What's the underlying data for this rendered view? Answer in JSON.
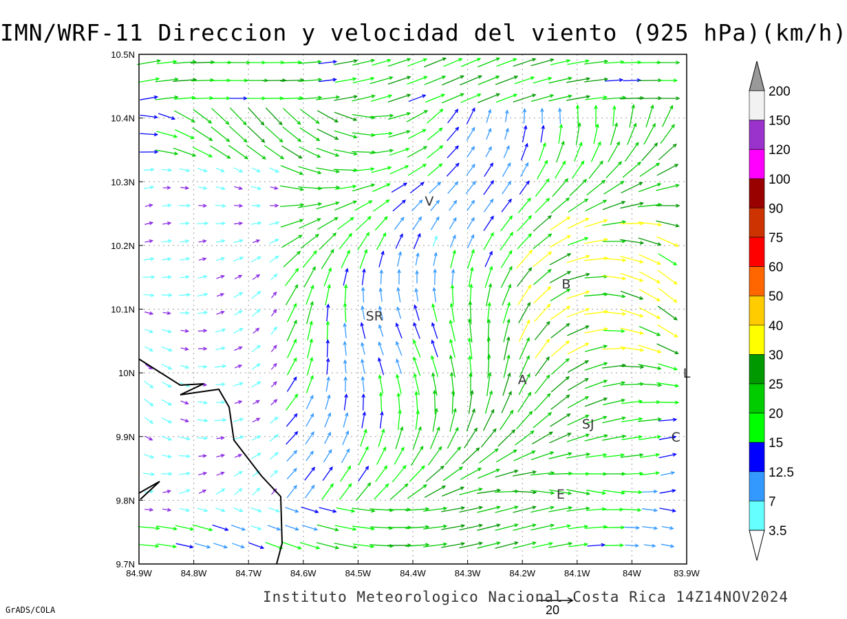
{
  "title": "IMN/WRF-11 Direccion y velocidad del viento (925 hPa)(km/h)",
  "footer": "Instituto Meteorologico Nacional Costa Rica 14Z14NOV2024",
  "credit": "GrADS/COLA",
  "ref_vector_label": "20",
  "chart_data": {
    "type": "vector-field",
    "x_ticks": [
      "84.9W",
      "84.8W",
      "84.7W",
      "84.6W",
      "84.5W",
      "84.4W",
      "84.3W",
      "84.2W",
      "84.1W",
      "84W",
      "83.9W"
    ],
    "y_ticks": [
      "10.5N",
      "10.4N",
      "10.3N",
      "10.2N",
      "10.1N",
      "10N",
      "9.9N",
      "9.8N",
      "9.7N"
    ],
    "xlim": [
      -84.9,
      -83.9
    ],
    "ylim": [
      9.7,
      10.5
    ],
    "grid": true,
    "cities": [
      {
        "name": "V",
        "lon": -84.37,
        "lat": 10.27
      },
      {
        "name": "SR",
        "lon": -84.47,
        "lat": 10.09
      },
      {
        "name": "B",
        "lon": -84.12,
        "lat": 10.14
      },
      {
        "name": "A",
        "lon": -84.2,
        "lat": 9.99
      },
      {
        "name": "SJ",
        "lon": -84.08,
        "lat": 9.92
      },
      {
        "name": "C",
        "lon": -83.92,
        "lat": 9.9
      },
      {
        "name": "E",
        "lon": -84.13,
        "lat": 9.81
      },
      {
        "name": "L",
        "lon": -83.9,
        "lat": 10.0
      }
    ],
    "colorbar": [
      {
        "label": "3.5",
        "color": "#66ffff"
      },
      {
        "label": "7",
        "color": "#3399ff"
      },
      {
        "label": "12.5",
        "color": "#0000ff"
      },
      {
        "label": "15",
        "color": "#00ff00"
      },
      {
        "label": "20",
        "color": "#00cc00"
      },
      {
        "label": "25",
        "color": "#009900"
      },
      {
        "label": "30",
        "color": "#ffff00"
      },
      {
        "label": "40",
        "color": "#ffcc00"
      },
      {
        "label": "50",
        "color": "#ff6600"
      },
      {
        "label": "60",
        "color": "#ff0000"
      },
      {
        "label": "75",
        "color": "#cc3300"
      },
      {
        "label": "90",
        "color": "#990000"
      },
      {
        "label": "100",
        "color": "#ff00ff"
      },
      {
        "label": "120",
        "color": "#9933cc"
      },
      {
        "label": "150",
        "color": "#f2f2f2"
      },
      {
        "label": "200",
        "color": "#999999"
      }
    ],
    "low_color": "#8a2be2"
  }
}
